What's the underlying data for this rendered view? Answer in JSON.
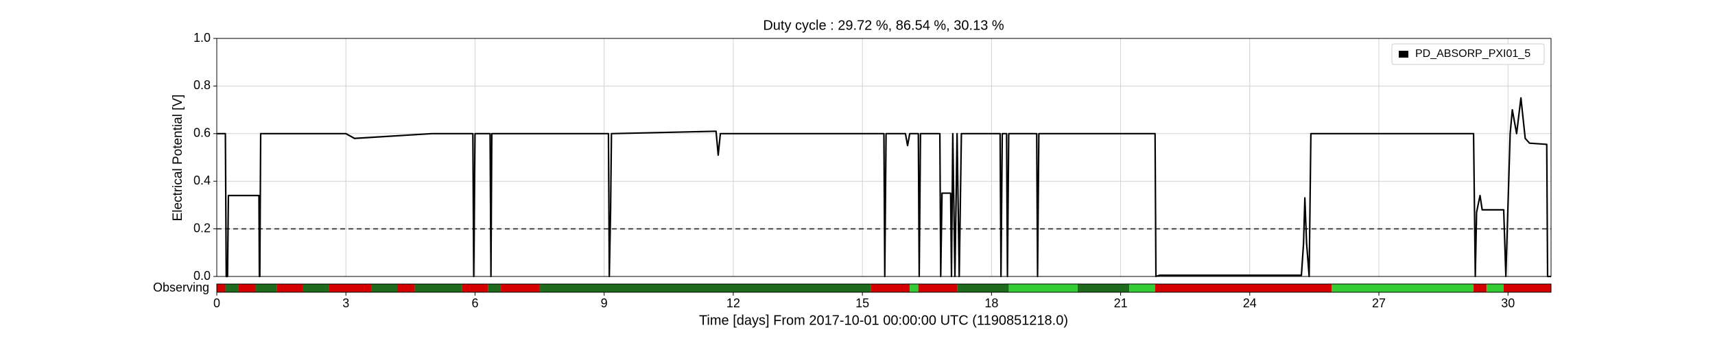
{
  "chart_data": {
    "type": "line",
    "title": "Duty cycle : 29.72 %, 86.54 %, 30.13 %",
    "x_label": "Time [days] From 2017-10-01 00:00:00 UTC (1190851218.0)",
    "y_label": "Electrical Potential [V]",
    "x": [
      0,
      0.2,
      0.22,
      0.25,
      0.27,
      0.9,
      0.98,
      0.99,
      1.0,
      1.02,
      3,
      3.2,
      5,
      5.95,
      5.97,
      6.0,
      6.35,
      6.37,
      6.39,
      9.1,
      9.12,
      9.15,
      9.17,
      11.6,
      11.65,
      11.7,
      15.5,
      15.52,
      15.55,
      16.0,
      16.05,
      16.1,
      16.3,
      16.32,
      16.35,
      16.8,
      16.82,
      16.85,
      17.05,
      17.07,
      17.1,
      17.15,
      17.2,
      17.25,
      17.3,
      18.2,
      18.22,
      18.25,
      18.35,
      18.37,
      18.4,
      19.05,
      19.07,
      19.1,
      21.8,
      21.82,
      21.9,
      25.2,
      25.25,
      25.28,
      25.32,
      25.38,
      25.42,
      29.2,
      29.24,
      29.27,
      29.35,
      29.4,
      29.9,
      29.95,
      30.05,
      30.1,
      30.2,
      30.3,
      30.4,
      30.5,
      30.9,
      30.92,
      31
    ],
    "series": [
      {
        "name": "PD_ABSORP_PXI01_5",
        "color": "#000000",
        "values": [
          0.6,
          0.6,
          0,
          0,
          0.34,
          0.34,
          0.34,
          0,
          0,
          0.6,
          0.6,
          0.58,
          0.6,
          0.6,
          0,
          0.6,
          0.6,
          0,
          0.6,
          0.6,
          0,
          0.28,
          0.6,
          0.61,
          0.51,
          0.6,
          0.6,
          0,
          0.6,
          0.6,
          0.55,
          0.6,
          0.6,
          0,
          0.6,
          0.6,
          0,
          0.35,
          0.35,
          0,
          0.6,
          0,
          0.6,
          0,
          0.6,
          0.6,
          0,
          0.6,
          0.6,
          0,
          0.6,
          0.6,
          0,
          0.6,
          0.6,
          0,
          0.005,
          0.005,
          0.14,
          0.33,
          0.14,
          0,
          0.6,
          0.6,
          0,
          0.27,
          0.34,
          0.28,
          0.28,
          0,
          0.6,
          0.7,
          0.6,
          0.75,
          0.58,
          0.56,
          0.555,
          0,
          0
        ]
      }
    ],
    "threshold": 0.2,
    "xlim": [
      0,
      31
    ],
    "ylim": [
      0,
      1
    ],
    "xticks": [
      0,
      3,
      6,
      9,
      12,
      15,
      18,
      21,
      24,
      27,
      30
    ],
    "yticks": [
      {
        "value": 0,
        "label": "0.0"
      },
      0.2,
      0.4,
      0.6,
      0.8,
      {
        "value": 1,
        "label": "1.0"
      }
    ],
    "grid": true,
    "legend": "upper right",
    "segments_label": "Observing",
    "segments": [
      {
        "start": 0,
        "end": 0.2,
        "color": "#d40000"
      },
      {
        "start": 0.2,
        "end": 0.5,
        "color": "#1e6b1e"
      },
      {
        "start": 0.5,
        "end": 0.9,
        "color": "#d40000"
      },
      {
        "start": 0.9,
        "end": 1.4,
        "color": "#1e6b1e"
      },
      {
        "start": 1.4,
        "end": 2.0,
        "color": "#d40000"
      },
      {
        "start": 2.0,
        "end": 2.6,
        "color": "#1e6b1e"
      },
      {
        "start": 2.6,
        "end": 3.6,
        "color": "#d40000"
      },
      {
        "start": 3.6,
        "end": 4.2,
        "color": "#1e6b1e"
      },
      {
        "start": 4.2,
        "end": 4.6,
        "color": "#d40000"
      },
      {
        "start": 4.6,
        "end": 5.7,
        "color": "#1e6b1e"
      },
      {
        "start": 5.7,
        "end": 6.3,
        "color": "#d40000"
      },
      {
        "start": 6.3,
        "end": 6.6,
        "color": "#1e6b1e"
      },
      {
        "start": 6.6,
        "end": 7.5,
        "color": "#d40000"
      },
      {
        "start": 7.5,
        "end": 15.2,
        "color": "#1e6b1e"
      },
      {
        "start": 15.2,
        "end": 16.1,
        "color": "#d40000"
      },
      {
        "start": 16.1,
        "end": 16.3,
        "color": "#33cc33"
      },
      {
        "start": 16.3,
        "end": 17.2,
        "color": "#d40000"
      },
      {
        "start": 17.2,
        "end": 18.4,
        "color": "#1e6b1e"
      },
      {
        "start": 18.4,
        "end": 20.0,
        "color": "#33cc33"
      },
      {
        "start": 20.0,
        "end": 21.2,
        "color": "#1e6b1e"
      },
      {
        "start": 21.2,
        "end": 21.8,
        "color": "#33cc33"
      },
      {
        "start": 21.8,
        "end": 25.9,
        "color": "#d40000"
      },
      {
        "start": 25.9,
        "end": 29.2,
        "color": "#33cc33"
      },
      {
        "start": 29.2,
        "end": 29.5,
        "color": "#d40000"
      },
      {
        "start": 29.5,
        "end": 29.9,
        "color": "#33cc33"
      },
      {
        "start": 29.9,
        "end": 31,
        "color": "#d40000"
      }
    ]
  }
}
